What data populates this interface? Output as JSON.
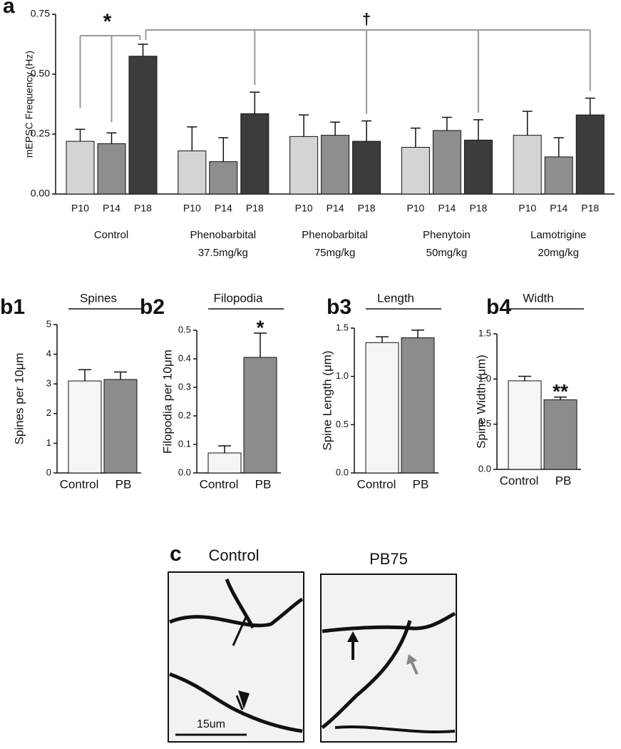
{
  "chart_data": [
    {
      "type": "grouped_bar",
      "panel_label": "a",
      "ylabel": "mEPSC Frequency (Hz)",
      "categories": [
        [
          "Control"
        ],
        [
          "Phenobarbital",
          "37.5mg/kg"
        ],
        [
          "Phenobarbital",
          "75mg/kg"
        ],
        [
          "Phenytoin",
          "50mg/kg"
        ],
        [
          "Lamotrigine",
          "20mg/kg"
        ]
      ],
      "series": [
        {
          "name": "P10",
          "color": "#d4d4d4",
          "values": [
            0.22,
            0.18,
            0.24,
            0.195,
            0.245
          ],
          "errors": [
            0.05,
            0.1,
            0.09,
            0.08,
            0.1
          ]
        },
        {
          "name": "P14",
          "color": "#8e8e8e",
          "values": [
            0.21,
            0.135,
            0.245,
            0.265,
            0.155
          ],
          "errors": [
            0.045,
            0.1,
            0.055,
            0.055,
            0.08
          ]
        },
        {
          "name": "P18",
          "color": "#3c3c3c",
          "values": [
            0.575,
            0.335,
            0.22,
            0.225,
            0.33
          ],
          "errors": [
            0.05,
            0.09,
            0.085,
            0.085,
            0.07
          ]
        }
      ],
      "ylim": [
        0,
        0.75
      ],
      "yticks": [
        {
          "value": 0,
          "label": "0.00"
        },
        {
          "value": 0.25,
          "label": "0.25"
        },
        {
          "value": 0.5,
          "label": "0.50"
        },
        {
          "value": 0.75,
          "label": "0.75"
        }
      ],
      "annotations": [
        "*",
        "†"
      ]
    },
    {
      "type": "bar",
      "panel_label": "b1",
      "title": "Spines",
      "ylabel": "Spines per 10μm",
      "categories": [
        "Control",
        "PB"
      ],
      "values": [
        3.1,
        3.15
      ],
      "errors": [
        0.38,
        0.25
      ],
      "colors": [
        "#f5f5f5",
        "#8c8c8c"
      ],
      "ylim": [
        0,
        5
      ],
      "yticks": [
        0,
        1,
        2,
        3,
        4,
        5
      ]
    },
    {
      "type": "bar",
      "panel_label": "b2",
      "title": "Filopodia",
      "ylabel": "Filopodia per 10μm",
      "categories": [
        "Control",
        "PB"
      ],
      "values": [
        0.07,
        0.405
      ],
      "errors": [
        0.025,
        0.085
      ],
      "colors": [
        "#f5f5f5",
        "#8c8c8c"
      ],
      "ylim": [
        0,
        0.5
      ],
      "yticks": [
        {
          "value": 0,
          "label": "0.0"
        },
        0.1,
        0.2,
        0.3,
        0.4,
        0.5
      ],
      "annotation": "*"
    },
    {
      "type": "bar",
      "panel_label": "b3",
      "title": "Length",
      "ylabel": "Spine Length (μm)",
      "categories": [
        "Control",
        "PB"
      ],
      "values": [
        1.35,
        1.4
      ],
      "errors": [
        0.06,
        0.08
      ],
      "colors": [
        "#f5f5f5",
        "#8c8c8c"
      ],
      "ylim": [
        0,
        1.5
      ],
      "yticks": [
        {
          "value": 0,
          "label": "0.0"
        },
        0.5,
        {
          "value": 1,
          "label": "1.0"
        },
        1.5
      ]
    },
    {
      "type": "bar",
      "panel_label": "b4",
      "title": "Width",
      "ylabel": "Spine Width (μm)",
      "categories": [
        "Control",
        "PB"
      ],
      "values": [
        0.98,
        0.77
      ],
      "errors": [
        0.05,
        0.03
      ],
      "colors": [
        "#f5f5f5",
        "#8c8c8c"
      ],
      "ylim": [
        0,
        1.5
      ],
      "yticks": [
        {
          "value": 0,
          "label": "0.0"
        },
        0.5,
        {
          "value": 1,
          "label": "1.0"
        },
        1.5
      ],
      "annotation": "**"
    }
  ],
  "images": {
    "panel_label": "c",
    "panels": [
      {
        "label": "Control"
      },
      {
        "label": "PB75"
      }
    ],
    "scale_bar": "15um"
  }
}
